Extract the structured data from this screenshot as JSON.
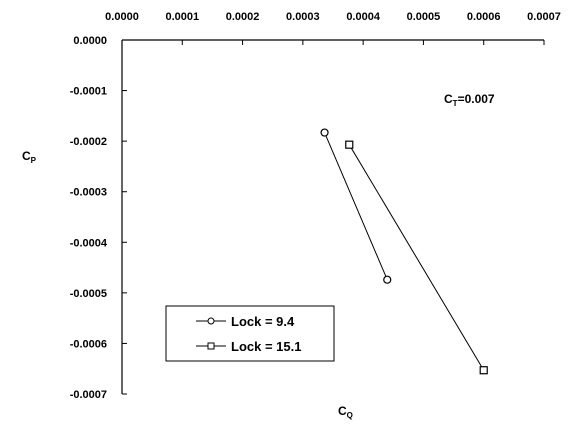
{
  "chart_data": {
    "type": "line",
    "xlabel": {
      "main": "C",
      "sub": "Q"
    },
    "ylabel": {
      "main": "C",
      "sub": "P"
    },
    "xlim": [
      0.0,
      0.0007
    ],
    "ylim": [
      -0.0007,
      0.0
    ],
    "x_ticks": [
      "0.0000",
      "0.0001",
      "0.0002",
      "0.0003",
      "0.0004",
      "0.0005",
      "0.0006",
      "0.0007"
    ],
    "y_ticks": [
      "0.0000",
      "-0.0001",
      "-0.0002",
      "-0.0003",
      "-0.0004",
      "-0.0005",
      "-0.0006",
      "-0.0007"
    ],
    "x_tick_values": [
      0.0,
      0.0001,
      0.0002,
      0.0003,
      0.0004,
      0.0005,
      0.0006,
      0.0007
    ],
    "y_tick_values": [
      0.0,
      -0.0001,
      -0.0002,
      -0.0003,
      -0.0004,
      -0.0005,
      -0.0006,
      -0.0007
    ],
    "x_axis_position": "top",
    "grid": false,
    "legend_position": "bottom-left",
    "annotation": {
      "main": "C",
      "sub": "T",
      "text": "=0.007"
    },
    "series": [
      {
        "name": "Lock = 9.4",
        "marker": "circle",
        "x": [
          0.000336,
          0.00044
        ],
        "y": [
          -0.000183,
          -0.000474
        ]
      },
      {
        "name": "Lock = 15.1",
        "marker": "square",
        "x": [
          0.000377,
          0.0006
        ],
        "y": [
          -0.000207,
          -0.000653
        ]
      }
    ]
  }
}
